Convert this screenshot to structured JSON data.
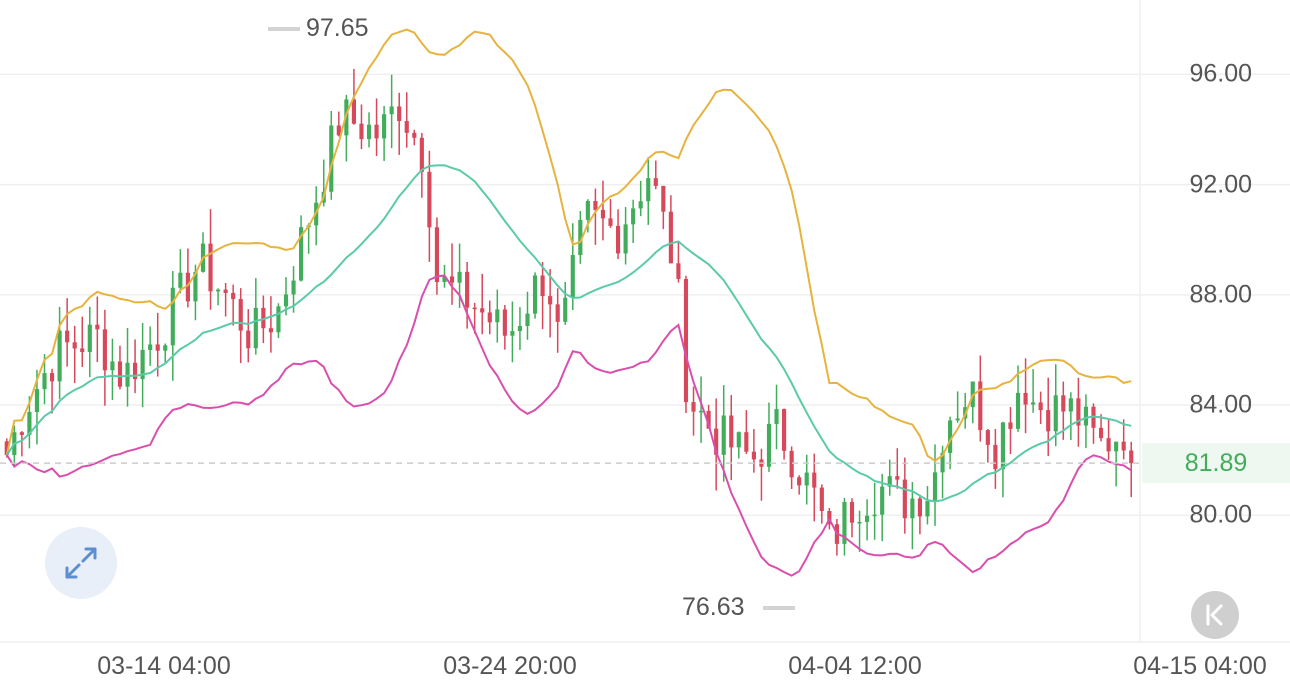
{
  "chart_data": {
    "type": "candlestick",
    "y_axis": {
      "tick_labels": [
        "96.00",
        "92.00",
        "88.00",
        "84.00",
        "80.00"
      ],
      "ticks": [
        96,
        92,
        88,
        84,
        80
      ],
      "range": [
        75.4,
        98.7
      ],
      "position": "right"
    },
    "x_axis": {
      "tick_labels": [
        "03-14 04:00",
        "03-24 20:00",
        "04-04 12:00",
        "04-15 04:00"
      ]
    },
    "grid": true,
    "last_price": {
      "value": 81.89,
      "label": "81.89"
    },
    "max_marker": {
      "value": 97.65,
      "label": "97.65"
    },
    "min_marker": {
      "value": 76.63,
      "label": "76.63"
    },
    "colors": {
      "up": "#41ad5b",
      "down": "#d6485a",
      "bollinger_upper": "#e6b43e",
      "bollinger_middle": "#5bcaa8",
      "bollinger_lower": "#d94fae",
      "grid": "#efefef",
      "last_price_line": "#cccccc"
    },
    "indicators": [
      "Bollinger Bands"
    ],
    "candle_count": 150,
    "price_path": [
      [
        0,
        82.2
      ],
      [
        3,
        84.0
      ],
      [
        8,
        86.0
      ],
      [
        14,
        86.5
      ],
      [
        18,
        85.0
      ],
      [
        24,
        86.7
      ],
      [
        30,
        89.2
      ],
      [
        34,
        88.0
      ],
      [
        38,
        86.5
      ],
      [
        42,
        87.3
      ],
      [
        48,
        91.5
      ],
      [
        52,
        94.5
      ],
      [
        58,
        93.8
      ],
      [
        61,
        95.0
      ],
      [
        65,
        93.0
      ],
      [
        67,
        88.5
      ],
      [
        72,
        87.8
      ],
      [
        78,
        86.5
      ],
      [
        82,
        88.2
      ],
      [
        84,
        88.8
      ],
      [
        86,
        86.2
      ],
      [
        90,
        90.8
      ],
      [
        95,
        90.3
      ],
      [
        100,
        92.5
      ],
      [
        104,
        89.0
      ],
      [
        106,
        84.3
      ],
      [
        110,
        83.0
      ],
      [
        116,
        82.0
      ],
      [
        120,
        83.2
      ],
      [
        126,
        80.5
      ],
      [
        128,
        79.0
      ],
      [
        132,
        80.5
      ],
      [
        136,
        81.0
      ],
      [
        140,
        80.5
      ],
      [
        144,
        81.0
      ],
      [
        146,
        83.5
      ],
      [
        150,
        84.5
      ],
      [
        154,
        82.5
      ],
      [
        158,
        85.0
      ],
      [
        160,
        84.0
      ],
      [
        166,
        83.8
      ],
      [
        170,
        82.5
      ],
      [
        175,
        83.3
      ]
    ]
  },
  "controls": {
    "expand_icon": "expand-arrows-icon",
    "collapse_icon": "collapse-left-icon"
  }
}
